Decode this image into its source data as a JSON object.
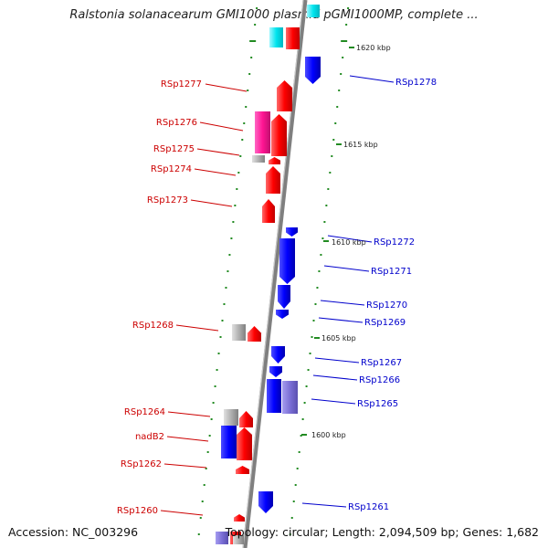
{
  "title": "Ralstonia solanacearum GMI1000 plasmid pGMI1000MP, complete ...",
  "accession": "Accession: NC_003296",
  "topology": "Topology: circular; Length: 2,094,509 bp; Genes: 1,682",
  "colors": {
    "forward": "#ff0000",
    "forward_pink": "#ff1493",
    "reverse": "#0000ff",
    "reverse_purple": "#7b6fd6",
    "cyan": "#00e5ee",
    "gray": "#a9a9a9",
    "tick": "#228b22",
    "backbone": "#808080"
  },
  "scale_labels": [
    "1620 kbp",
    "1615 kbp",
    "1610 kbp",
    "1605 kbp",
    "1600 kbp"
  ],
  "left_genes": [
    "RSp1277",
    "RSp1276",
    "RSp1275",
    "RSp1274",
    "RSp1273",
    "RSp1268",
    "RSp1264",
    "nadB2",
    "RSp1262",
    "RSp1260"
  ],
  "right_genes": [
    "RSp1278",
    "RSp1272",
    "RSp1271",
    "RSp1270",
    "RSp1269",
    "RSp1267",
    "RSp1266",
    "RSp1265",
    "RSp1261"
  ]
}
